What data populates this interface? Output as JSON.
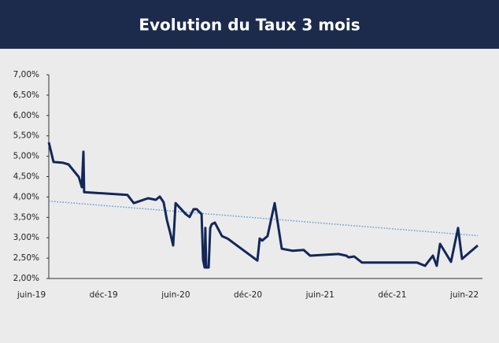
{
  "chart_data": {
    "type": "line",
    "title": "Evolution du Taux  3 mois",
    "series": [
      {
        "name": "Taux 3 mois",
        "color": "#13275a",
        "x": [
          1.44,
          1.83,
          2.62,
          3.08,
          3.93,
          4.19,
          4.32,
          4.38,
          7.98,
          8.51,
          9.69,
          10.34,
          10.67,
          10.99,
          11.26,
          11.52,
          11.78,
          11.98,
          12.83,
          13.15,
          13.48,
          13.74,
          14.14,
          14.27,
          14.4,
          14.46,
          14.53,
          14.73,
          14.86,
          14.99,
          15.25,
          15.84,
          16.3,
          18.78,
          18.98,
          19.18,
          19.63,
          20.22,
          20.81,
          21.73,
          22.64,
          23.17,
          25.52,
          26.18,
          26.37,
          26.83,
          27.49,
          32.07,
          32.72,
          33.38,
          33.7,
          33.97,
          34.88,
          35.47,
          35.8,
          37.11
        ],
        "values": [
          5.34,
          4.86,
          4.84,
          4.8,
          4.49,
          4.24,
          5.11,
          4.12,
          4.05,
          3.85,
          3.97,
          3.93,
          4.01,
          3.87,
          3.43,
          3.14,
          2.81,
          3.85,
          3.58,
          3.51,
          3.7,
          3.7,
          3.58,
          2.46,
          2.27,
          3.24,
          2.27,
          2.27,
          3.24,
          3.33,
          3.37,
          3.04,
          2.98,
          2.44,
          2.98,
          2.93,
          3.04,
          3.85,
          2.73,
          2.68,
          2.7,
          2.56,
          2.6,
          2.56,
          2.52,
          2.54,
          2.39,
          2.39,
          2.31,
          2.56,
          2.31,
          2.85,
          2.41,
          3.24,
          2.48,
          2.81
        ]
      }
    ],
    "trendline": {
      "color": "#5b9bd5",
      "x": [
        1.44,
        37.11
      ],
      "values": [
        3.9,
        3.05
      ]
    },
    "xlim": [
      0,
      37.5
    ],
    "xticks": [
      {
        "value": 0,
        "label": "juin-19"
      },
      {
        "value": 6,
        "label": "déc-19"
      },
      {
        "value": 12,
        "label": "juin-20"
      },
      {
        "value": 18,
        "label": "déc-20"
      },
      {
        "value": 24,
        "label": "juin-21"
      },
      {
        "value": 30,
        "label": "déc-21"
      },
      {
        "value": 36,
        "label": "juin-22"
      }
    ],
    "ylim": [
      2,
      7
    ],
    "yticks": [
      {
        "value": 2,
        "label": "2,00%"
      },
      {
        "value": 2.5,
        "label": "2,50%"
      },
      {
        "value": 3,
        "label": "3,00%"
      },
      {
        "value": 3.5,
        "label": "3,50%"
      },
      {
        "value": 4,
        "label": "4,00%"
      },
      {
        "value": 4.5,
        "label": "4,50%"
      },
      {
        "value": 5,
        "label": "5,00%"
      },
      {
        "value": 5.5,
        "label": "5,50%"
      },
      {
        "value": 6,
        "label": "6,00%"
      },
      {
        "value": 6.5,
        "label": "6,50%"
      },
      {
        "value": 7,
        "label": "7,00%"
      }
    ]
  }
}
